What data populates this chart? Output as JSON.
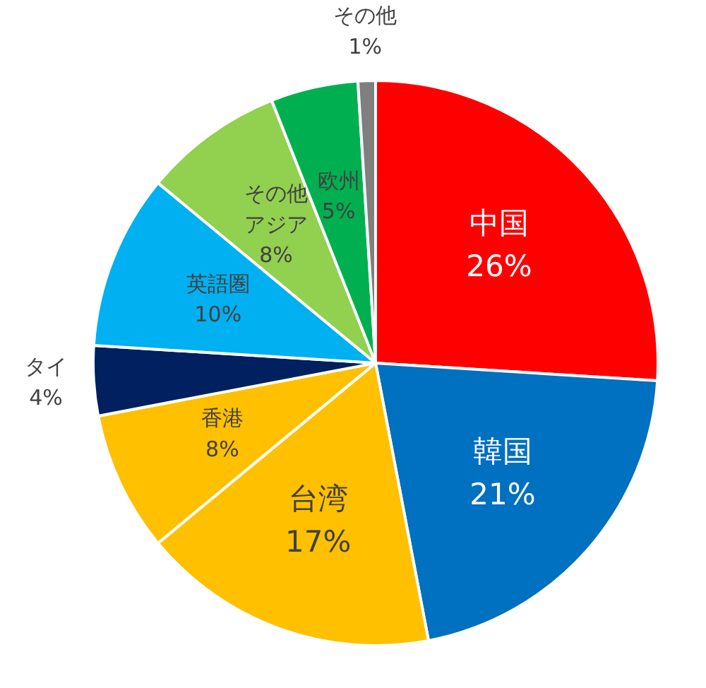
{
  "chart_data": {
    "type": "pie",
    "categories": [
      "中国",
      "韓国",
      "台湾",
      "香港",
      "タイ",
      "英語圏",
      "その他アジア",
      "欧州",
      "その他"
    ],
    "values": [
      26,
      21,
      17,
      8,
      4,
      10,
      8,
      5,
      1
    ],
    "colors": [
      "#ff0000",
      "#0070c0",
      "#ffc000",
      "#ffc000",
      "#002060",
      "#00b0f0",
      "#92d050",
      "#00b050",
      "#7f7f7f"
    ],
    "value_labels": [
      "26%",
      "21%",
      "17%",
      "8%",
      "4%",
      "10%",
      "8%",
      "5%",
      "1%"
    ],
    "legend": false
  }
}
